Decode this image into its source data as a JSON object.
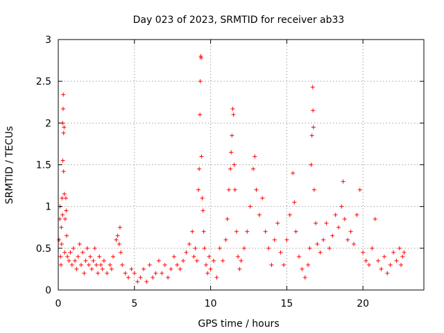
{
  "chart_data": {
    "type": "scatter",
    "title": "Day 023 of 2023, SRMTID for receiver ab33",
    "xlabel": "GPS time / hours",
    "ylabel": "SRMTID / TECUs",
    "xlim": [
      0,
      24
    ],
    "ylim": [
      0,
      3
    ],
    "xticks": [
      0,
      5,
      10,
      15,
      20
    ],
    "yticks": [
      0,
      0.5,
      1,
      1.5,
      2,
      2.5,
      3
    ],
    "xtick_labels": [
      "0",
      "5",
      "10",
      "15",
      "20"
    ],
    "ytick_labels": [
      "0",
      "0.5",
      "1",
      "1.5",
      "2",
      "2.5",
      "3"
    ],
    "grid": true,
    "marker": "+",
    "color": "#ff0000",
    "series": [
      {
        "name": "SRMTID",
        "note": "representative subset of the dense scatter, values read from the plot",
        "points": [
          [
            0.05,
            0.6
          ],
          [
            0.1,
            0.85
          ],
          [
            0.12,
            1.0
          ],
          [
            0.15,
            0.4
          ],
          [
            0.18,
            0.3
          ],
          [
            0.2,
            0.75
          ],
          [
            0.22,
            0.55
          ],
          [
            0.25,
            1.1
          ],
          [
            0.28,
            0.9
          ],
          [
            0.3,
            1.55
          ],
          [
            0.3,
            2.0
          ],
          [
            0.32,
            2.17
          ],
          [
            0.33,
            2.34
          ],
          [
            0.35,
            1.42
          ],
          [
            0.35,
            1.88
          ],
          [
            0.38,
            1.95
          ],
          [
            0.4,
            1.15
          ],
          [
            0.42,
            0.45
          ],
          [
            0.45,
            0.85
          ],
          [
            0.5,
            1.1
          ],
          [
            0.52,
            0.95
          ],
          [
            0.55,
            0.65
          ],
          [
            0.6,
            0.4
          ],
          [
            0.7,
            0.35
          ],
          [
            0.8,
            0.45
          ],
          [
            0.9,
            0.3
          ],
          [
            1.0,
            0.5
          ],
          [
            1.1,
            0.35
          ],
          [
            1.2,
            0.25
          ],
          [
            1.3,
            0.4
          ],
          [
            1.4,
            0.55
          ],
          [
            1.5,
            0.3
          ],
          [
            1.6,
            0.45
          ],
          [
            1.7,
            0.2
          ],
          [
            1.8,
            0.35
          ],
          [
            1.9,
            0.5
          ],
          [
            2.0,
            0.3
          ],
          [
            2.1,
            0.4
          ],
          [
            2.2,
            0.25
          ],
          [
            2.3,
            0.35
          ],
          [
            2.4,
            0.5
          ],
          [
            2.5,
            0.3
          ],
          [
            2.6,
            0.2
          ],
          [
            2.7,
            0.4
          ],
          [
            2.8,
            0.3
          ],
          [
            2.9,
            0.25
          ],
          [
            3.0,
            0.35
          ],
          [
            3.2,
            0.2
          ],
          [
            3.4,
            0.3
          ],
          [
            3.5,
            0.25
          ],
          [
            3.6,
            0.4
          ],
          [
            3.8,
            0.6
          ],
          [
            3.9,
            0.65
          ],
          [
            4.0,
            0.55
          ],
          [
            4.05,
            0.75
          ],
          [
            4.1,
            0.45
          ],
          [
            4.2,
            0.3
          ],
          [
            4.4,
            0.2
          ],
          [
            4.6,
            0.15
          ],
          [
            4.8,
            0.25
          ],
          [
            5.0,
            0.2
          ],
          [
            5.2,
            0.1
          ],
          [
            5.4,
            0.15
          ],
          [
            5.6,
            0.25
          ],
          [
            5.8,
            0.1
          ],
          [
            6.0,
            0.3
          ],
          [
            6.2,
            0.15
          ],
          [
            6.4,
            0.2
          ],
          [
            6.6,
            0.35
          ],
          [
            6.8,
            0.2
          ],
          [
            7.0,
            0.3
          ],
          [
            7.2,
            0.15
          ],
          [
            7.4,
            0.25
          ],
          [
            7.6,
            0.4
          ],
          [
            7.8,
            0.3
          ],
          [
            8.0,
            0.25
          ],
          [
            8.2,
            0.35
          ],
          [
            8.4,
            0.45
          ],
          [
            8.6,
            0.55
          ],
          [
            8.8,
            0.7
          ],
          [
            8.9,
            0.4
          ],
          [
            9.0,
            0.5
          ],
          [
            9.1,
            0.35
          ],
          [
            9.2,
            1.2
          ],
          [
            9.25,
            1.45
          ],
          [
            9.3,
            2.1
          ],
          [
            9.32,
            2.5
          ],
          [
            9.35,
            2.8
          ],
          [
            9.38,
            2.78
          ],
          [
            9.4,
            1.6
          ],
          [
            9.45,
            1.1
          ],
          [
            9.5,
            0.95
          ],
          [
            9.55,
            0.7
          ],
          [
            9.6,
            0.5
          ],
          [
            9.7,
            0.3
          ],
          [
            9.8,
            0.2
          ],
          [
            9.9,
            0.4
          ],
          [
            10.0,
            0.25
          ],
          [
            10.2,
            0.35
          ],
          [
            10.4,
            0.15
          ],
          [
            10.6,
            0.5
          ],
          [
            10.8,
            0.35
          ],
          [
            11.0,
            0.6
          ],
          [
            11.1,
            0.85
          ],
          [
            11.2,
            1.2
          ],
          [
            11.3,
            1.45
          ],
          [
            11.35,
            1.65
          ],
          [
            11.4,
            1.85
          ],
          [
            11.45,
            2.17
          ],
          [
            11.5,
            2.1
          ],
          [
            11.55,
            1.5
          ],
          [
            11.6,
            1.2
          ],
          [
            11.7,
            0.7
          ],
          [
            11.8,
            0.4
          ],
          [
            11.9,
            0.25
          ],
          [
            12.0,
            0.35
          ],
          [
            12.2,
            0.5
          ],
          [
            12.4,
            0.7
          ],
          [
            12.6,
            1.0
          ],
          [
            12.8,
            1.45
          ],
          [
            12.9,
            1.6
          ],
          [
            13.0,
            1.2
          ],
          [
            13.2,
            0.9
          ],
          [
            13.4,
            1.1
          ],
          [
            13.6,
            0.7
          ],
          [
            13.8,
            0.5
          ],
          [
            14.0,
            0.3
          ],
          [
            14.2,
            0.6
          ],
          [
            14.4,
            0.8
          ],
          [
            14.6,
            0.45
          ],
          [
            14.8,
            0.3
          ],
          [
            15.0,
            0.6
          ],
          [
            15.2,
            0.9
          ],
          [
            15.4,
            1.4
          ],
          [
            15.5,
            1.05
          ],
          [
            15.6,
            0.7
          ],
          [
            15.8,
            0.4
          ],
          [
            16.0,
            0.25
          ],
          [
            16.2,
            0.15
          ],
          [
            16.4,
            0.3
          ],
          [
            16.5,
            0.5
          ],
          [
            16.6,
            1.5
          ],
          [
            16.65,
            1.85
          ],
          [
            16.7,
            2.43
          ],
          [
            16.72,
            2.15
          ],
          [
            16.75,
            1.95
          ],
          [
            16.8,
            1.2
          ],
          [
            16.9,
            0.8
          ],
          [
            17.0,
            0.55
          ],
          [
            17.2,
            0.45
          ],
          [
            17.4,
            0.6
          ],
          [
            17.6,
            0.8
          ],
          [
            17.8,
            0.5
          ],
          [
            18.0,
            0.65
          ],
          [
            18.2,
            0.9
          ],
          [
            18.4,
            0.75
          ],
          [
            18.6,
            1.0
          ],
          [
            18.7,
            1.3
          ],
          [
            18.8,
            0.85
          ],
          [
            19.0,
            0.6
          ],
          [
            19.2,
            0.7
          ],
          [
            19.4,
            0.55
          ],
          [
            19.6,
            0.9
          ],
          [
            19.8,
            1.2
          ],
          [
            20.0,
            0.45
          ],
          [
            20.2,
            0.35
          ],
          [
            20.4,
            0.3
          ],
          [
            20.6,
            0.5
          ],
          [
            20.8,
            0.85
          ],
          [
            21.0,
            0.35
          ],
          [
            21.2,
            0.25
          ],
          [
            21.4,
            0.4
          ],
          [
            21.6,
            0.2
          ],
          [
            21.8,
            0.3
          ],
          [
            22.0,
            0.45
          ],
          [
            22.2,
            0.35
          ],
          [
            22.4,
            0.5
          ],
          [
            22.5,
            0.3
          ],
          [
            22.6,
            0.4
          ],
          [
            22.7,
            0.45
          ]
        ]
      }
    ]
  }
}
